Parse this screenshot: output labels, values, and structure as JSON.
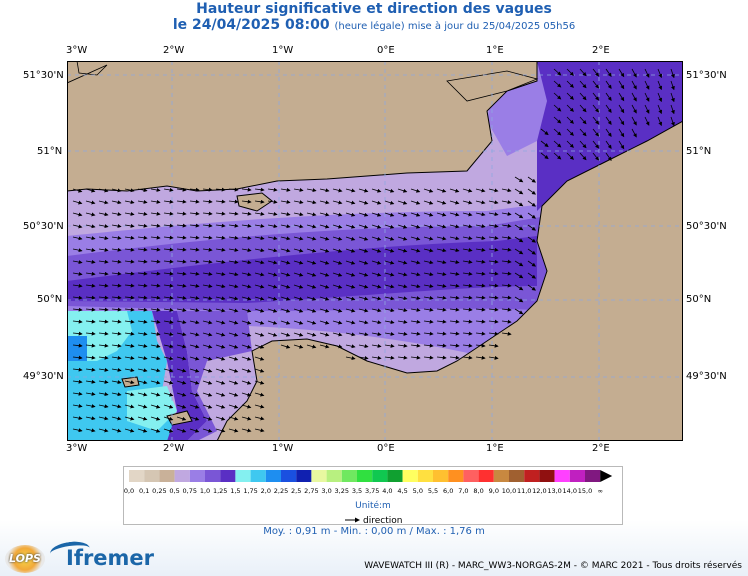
{
  "header": {
    "title": "Hauteur significative et direction des vagues",
    "date_line": "le 24/04/2025 08:00",
    "date_note": "(heure légale) mise à jour du 25/04/2025 05h56"
  },
  "map": {
    "lon_labels": [
      "3°W",
      "2°W",
      "1°W",
      "0°E",
      "1°E",
      "2°E"
    ],
    "lat_labels": [
      "51°30'N",
      "51°N",
      "50°30'N",
      "50°N",
      "49°30'N"
    ],
    "land_color": "#c4ad91",
    "coast_color": "#000000",
    "grid_style": "dashed light-blue",
    "wave_direction": "mostly toward east / east-south-east (arrows)"
  },
  "legend": {
    "ticks": [
      "0,0",
      "0,1",
      "0,25",
      "0,5",
      "0,75",
      "1,0",
      "1,25",
      "1,5",
      "1,75",
      "2,0",
      "2,25",
      "2,5",
      "2,75",
      "3,0",
      "3,25",
      "3,5",
      "3,75",
      "4,0",
      "4,5",
      "5,0",
      "5,5",
      "6,0",
      "7,0",
      "8,0",
      "9,0",
      "10,0",
      "11,0",
      "12,0",
      "13,0",
      "14,0",
      "15,0",
      "∞"
    ],
    "colors": [
      "#e2d6c6",
      "#d5c6b3",
      "#c9b199",
      "#c0a8e0",
      "#9a7ee6",
      "#7a56d6",
      "#5a2fc4",
      "#84f0f0",
      "#3fc8f0",
      "#1e8ef0",
      "#1a50e0",
      "#1020b0",
      "#e8f8a0",
      "#b8f080",
      "#70e860",
      "#30e040",
      "#10c850",
      "#10a030",
      "#ffff60",
      "#ffe040",
      "#ffc030",
      "#ff9020",
      "#ff6060",
      "#ff3030",
      "#c88840",
      "#a06030",
      "#c02020",
      "#901010",
      "#ff40ff",
      "#c020c0",
      "#801880"
    ],
    "unit": "Unité:m",
    "direction_label": "direction",
    "stats": "Moy. : 0,91 m  -  Min. : 0,00 m / Max. : 1,76 m"
  },
  "footer": {
    "credits": "WAVEWATCH III (R) - MARC_WW3-NORGAS-2M - © MARC 2021 - Tous droits réservés",
    "logo_lops": "LOPS",
    "logo_ifremer": "Ifremer"
  }
}
